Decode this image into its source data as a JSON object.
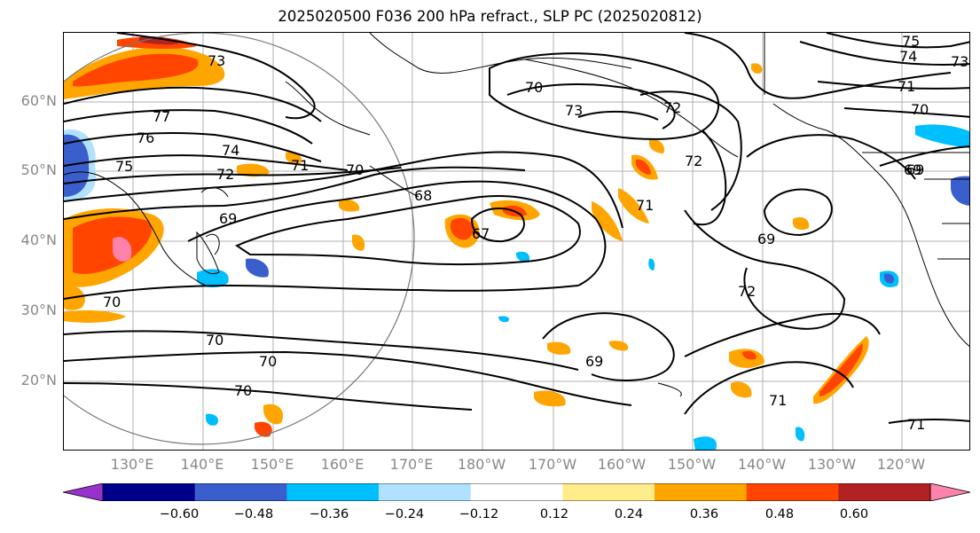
{
  "title": "2025020500 F036 200 hPa refract., SLP PC (2025020812)",
  "lat_labels": [
    "60°N",
    "50°N",
    "40°N",
    "30°N",
    "20°N"
  ],
  "lon_labels": [
    "130°E",
    "140°E",
    "150°E",
    "160°E",
    "170°E",
    "180°W",
    "170°W",
    "160°W",
    "150°W",
    "140°W",
    "130°W",
    "120°W"
  ],
  "contour_labels": [
    "73",
    "77",
    "76",
    "75",
    "74",
    "72",
    "71",
    "70",
    "69",
    "68",
    "67",
    "70",
    "70",
    "70",
    "70",
    "69",
    "70",
    "73",
    "72",
    "72",
    "71",
    "69",
    "69",
    "72",
    "71",
    "71",
    "75",
    "74",
    "73",
    "71",
    "70",
    "69"
  ],
  "colorbar": {
    "ticks": [
      "−0.60",
      "−0.48",
      "−0.36",
      "−0.24",
      "−0.12",
      "0.12",
      "0.24",
      "0.36",
      "0.48",
      "0.60"
    ],
    "colors": [
      "#9932cc",
      "#00008b",
      "#3a5fcd",
      "#00bfff",
      "#b0e2ff",
      "#ffffff",
      "#ffec8b",
      "#ffa500",
      "#ff4500",
      "#b22222",
      "#ff82ab"
    ]
  }
}
